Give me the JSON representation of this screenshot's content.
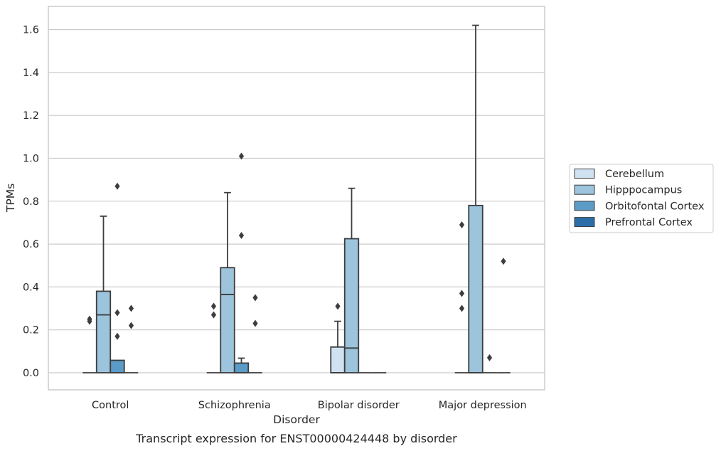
{
  "caption": "Transcript expression for ENST00000424448 by disorder",
  "chart_data": {
    "type": "boxplot",
    "xlabel": "Disorder",
    "ylabel": "TPMs",
    "ylim": [
      -0.08,
      1.7
    ],
    "yticks": [
      "0.0",
      "0.2",
      "0.4",
      "0.6",
      "0.8",
      "1.0",
      "1.2",
      "1.4",
      "1.6"
    ],
    "grid": true,
    "legend_position": "right",
    "categories": [
      "Control",
      "Schizophrenia",
      "Bipolar disorder",
      "Major depression"
    ],
    "series": [
      {
        "name": "Cerebellum",
        "color": "#d0e1f2",
        "boxes": [
          {
            "q1": 0,
            "median": 0,
            "q3": 0,
            "whisker_low": 0,
            "whisker_high": 0,
            "outliers": [
              0.24,
              0.25
            ]
          },
          {
            "q1": 0,
            "median": 0,
            "q3": 0,
            "whisker_low": 0,
            "whisker_high": 0,
            "outliers": [
              0.27,
              0.31
            ]
          },
          {
            "q1": 0,
            "median": 0,
            "q3": 0.12,
            "whisker_low": 0,
            "whisker_high": 0.24,
            "outliers": [
              0.31
            ]
          },
          {
            "q1": 0,
            "median": 0,
            "q3": 0,
            "whisker_low": 0,
            "whisker_high": 0,
            "outliers": [
              0.3,
              0.37,
              0.69
            ]
          }
        ]
      },
      {
        "name": "Hipppocampus",
        "color": "#9cc4dc",
        "boxes": [
          {
            "q1": 0,
            "median": 0.27,
            "q3": 0.38,
            "whisker_low": 0,
            "whisker_high": 0.73,
            "outliers": []
          },
          {
            "q1": 0,
            "median": 0.365,
            "q3": 0.49,
            "whisker_low": 0,
            "whisker_high": 0.84,
            "outliers": []
          },
          {
            "q1": 0,
            "median": 0.115,
            "q3": 0.625,
            "whisker_low": 0,
            "whisker_high": 0.86,
            "outliers": []
          },
          {
            "q1": 0,
            "median": 0,
            "q3": 0.78,
            "whisker_low": 0,
            "whisker_high": 1.62,
            "outliers": []
          }
        ]
      },
      {
        "name": "Orbitofontal Cortex",
        "color": "#5b9bc8",
        "boxes": [
          {
            "q1": 0,
            "median": 0,
            "q3": 0.058,
            "whisker_low": 0,
            "whisker_high": 0.058,
            "outliers": [
              0.17,
              0.28,
              0.87
            ]
          },
          {
            "q1": 0,
            "median": 0,
            "q3": 0.045,
            "whisker_low": 0,
            "whisker_high": 0.068,
            "outliers": [
              0.64,
              1.01
            ]
          },
          {
            "q1": 0,
            "median": 0,
            "q3": 0,
            "whisker_low": 0,
            "whisker_high": 0,
            "outliers": []
          },
          {
            "q1": 0,
            "median": 0,
            "q3": 0,
            "whisker_low": 0,
            "whisker_high": 0,
            "outliers": [
              0.07
            ]
          }
        ]
      },
      {
        "name": "Prefrontal Cortex",
        "color": "#2b6ea8",
        "boxes": [
          {
            "q1": 0,
            "median": 0,
            "q3": 0,
            "whisker_low": 0,
            "whisker_high": 0,
            "outliers": [
              0.22,
              0.3
            ]
          },
          {
            "q1": 0,
            "median": 0,
            "q3": 0,
            "whisker_low": 0,
            "whisker_high": 0,
            "outliers": [
              0.23,
              0.35
            ]
          },
          {
            "q1": 0,
            "median": 0,
            "q3": 0,
            "whisker_low": 0,
            "whisker_high": 0,
            "outliers": []
          },
          {
            "q1": 0,
            "median": 0,
            "q3": 0,
            "whisker_low": 0,
            "whisker_high": 0,
            "outliers": [
              0.52
            ]
          }
        ]
      }
    ]
  }
}
